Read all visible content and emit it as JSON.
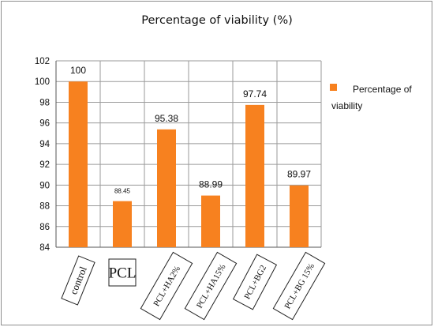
{
  "chart_data": {
    "type": "bar",
    "title": "Percentage of viability (%)",
    "xlabel": "",
    "ylabel": "",
    "categories": [
      "control",
      "PCL",
      "PCL+HA2%",
      "PCL+HA15%",
      "PCL+BG2",
      "PCL+BG 15%"
    ],
    "series": [
      {
        "name": "Percentage of viability",
        "values": [
          100,
          88.45,
          95.38,
          88.99,
          97.74,
          89.97
        ],
        "value_labels": [
          "100",
          "88.45",
          "95.38",
          "88.99",
          "97.74",
          "89.97"
        ],
        "color": "#f7811f"
      }
    ],
    "ylim": [
      84,
      102
    ],
    "yticks": [
      "84",
      "86",
      "88",
      "90",
      "92",
      "94",
      "96",
      "98",
      "100",
      "102"
    ],
    "grid": true,
    "legend_position": "right",
    "legend_line1": "Percentage of",
    "legend_line2": "viability"
  }
}
